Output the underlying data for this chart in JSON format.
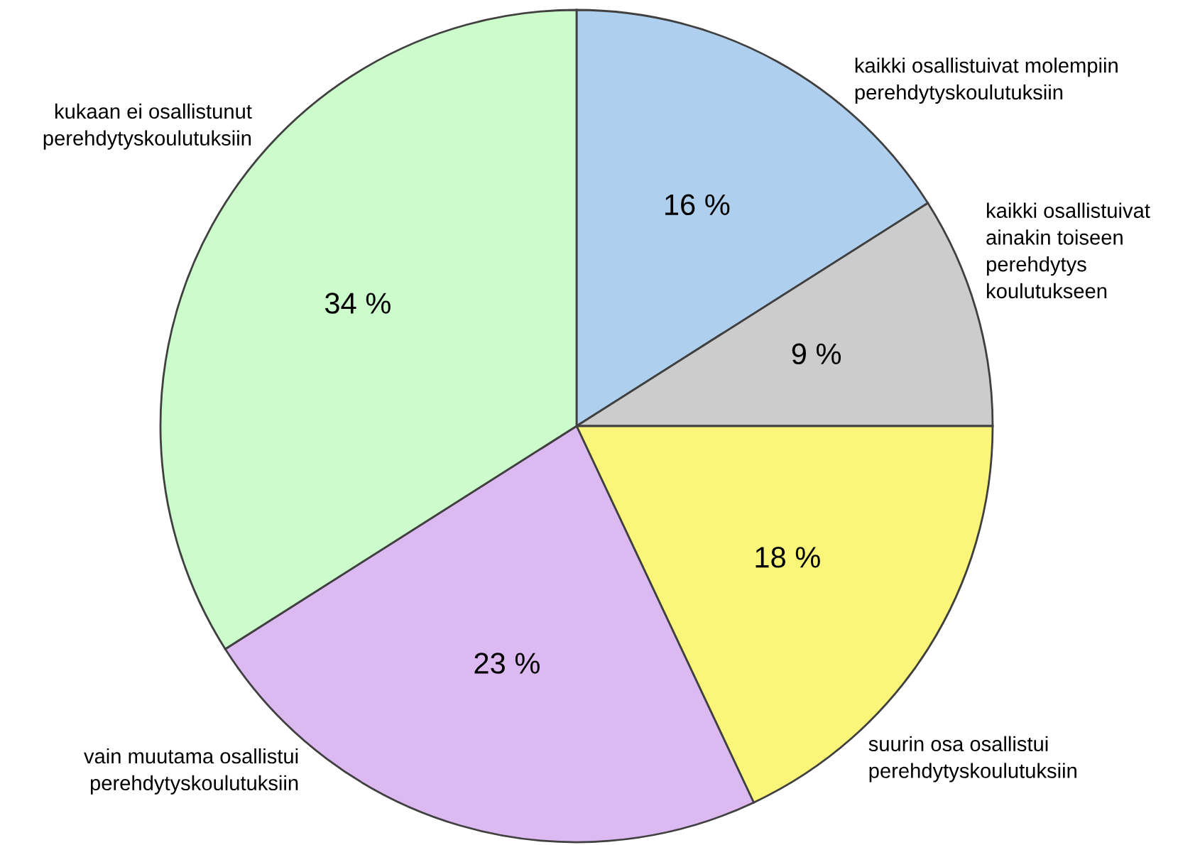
{
  "chart_data": {
    "type": "pie",
    "categories": [
      "kaikki osallistuivat molempiin\nperehdytyskoulutuksiin",
      "kaikki osallistuivat\nainakin toiseen\nperehdytys\nkoulutukseen",
      "suurin osa osallistui\nperehdytyskoulutuksiin",
      "vain muutama osallistui\nperehdytyskoulutuksiin",
      "kukaan ei osallistunut\nperehdytyskoulutuksiin"
    ],
    "values": [
      16,
      9,
      18,
      23,
      34
    ],
    "value_labels": [
      "16 %",
      "9 %",
      "18 %",
      "23 %",
      "34 %"
    ],
    "colors": [
      "#aecfee",
      "#cccccc",
      "#fbf67a",
      "#dcb9f0",
      "#ccfccc"
    ]
  }
}
